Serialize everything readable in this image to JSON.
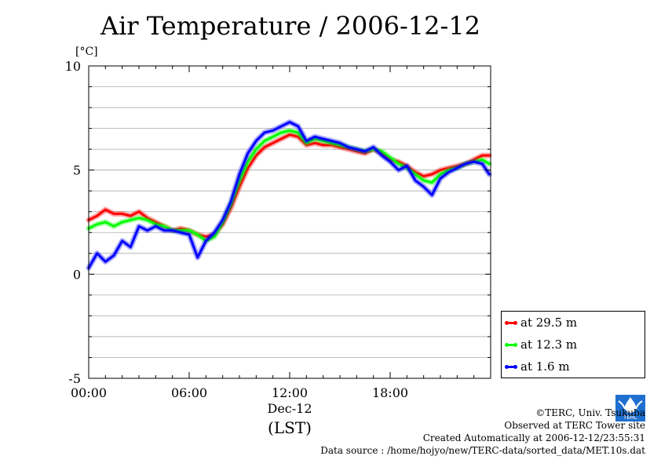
{
  "chart_data": {
    "type": "line",
    "title": "Air Temperature / 2006-12-12",
    "ylabel": "[°C]",
    "ylim": [
      -5,
      10
    ],
    "yticks": [
      -5,
      0,
      5,
      10
    ],
    "xlim": [
      "2006-12-12 00:00",
      "2006-12-13 00:00"
    ],
    "xticks": [
      "00:00",
      "06:00",
      "12:00",
      "18:00"
    ],
    "xdate_label": "Dec-12",
    "xlabel": "(LST)",
    "grid": true,
    "legend_position": "right, below the plot top",
    "x": [
      "00:00",
      "00:30",
      "01:00",
      "01:30",
      "02:00",
      "02:30",
      "03:00",
      "03:30",
      "04:00",
      "04:30",
      "05:00",
      "05:30",
      "06:00",
      "06:30",
      "07:00",
      "07:30",
      "08:00",
      "08:30",
      "09:00",
      "09:30",
      "10:00",
      "10:30",
      "11:00",
      "11:30",
      "12:00",
      "12:30",
      "13:00",
      "13:30",
      "14:00",
      "14:30",
      "15:00",
      "15:30",
      "16:00",
      "16:30",
      "17:00",
      "17:30",
      "18:00",
      "18:30",
      "19:00",
      "19:30",
      "20:00",
      "20:30",
      "21:00",
      "21:30",
      "22:00",
      "22:30",
      "23:00",
      "23:30",
      "23:55"
    ],
    "series": [
      {
        "name": "at 29.5 m",
        "color": "#ff0000",
        "values": [
          2.6,
          2.8,
          3.1,
          2.9,
          2.9,
          2.8,
          3.0,
          2.7,
          2.5,
          2.3,
          2.1,
          2.2,
          2.1,
          1.9,
          1.8,
          1.9,
          2.4,
          3.2,
          4.2,
          5.1,
          5.7,
          6.1,
          6.3,
          6.5,
          6.7,
          6.6,
          6.2,
          6.3,
          6.2,
          6.2,
          6.1,
          6.0,
          5.9,
          5.8,
          6.0,
          5.8,
          5.5,
          5.4,
          5.2,
          4.9,
          4.7,
          4.8,
          5.0,
          5.1,
          5.2,
          5.3,
          5.5,
          5.7,
          5.7
        ]
      },
      {
        "name": "at 12.3 m",
        "color": "#00ff00",
        "values": [
          2.2,
          2.4,
          2.5,
          2.3,
          2.5,
          2.6,
          2.7,
          2.6,
          2.4,
          2.3,
          2.1,
          2.1,
          2.1,
          1.9,
          1.6,
          1.8,
          2.5,
          3.4,
          4.5,
          5.4,
          6.0,
          6.4,
          6.6,
          6.8,
          6.9,
          6.8,
          6.3,
          6.5,
          6.4,
          6.3,
          6.2,
          6.1,
          6.0,
          5.9,
          6.0,
          5.9,
          5.6,
          5.3,
          5.1,
          4.8,
          4.5,
          4.4,
          4.8,
          5.0,
          5.1,
          5.3,
          5.4,
          5.5,
          5.3
        ]
      },
      {
        "name": "at 1.6 m",
        "color": "#0000ff",
        "values": [
          0.3,
          1.0,
          0.6,
          0.9,
          1.6,
          1.3,
          2.3,
          2.1,
          2.3,
          2.1,
          2.1,
          2.0,
          1.9,
          0.8,
          1.6,
          2.0,
          2.6,
          3.5,
          4.8,
          5.8,
          6.4,
          6.8,
          6.9,
          7.1,
          7.3,
          7.1,
          6.4,
          6.6,
          6.5,
          6.4,
          6.3,
          6.1,
          6.0,
          5.9,
          6.1,
          5.7,
          5.4,
          5.0,
          5.2,
          4.5,
          4.2,
          3.8,
          4.6,
          4.9,
          5.1,
          5.3,
          5.4,
          5.3,
          4.8
        ]
      }
    ]
  },
  "logo_text": "TERC",
  "credits": [
    "©TERC, Univ. Tsukuba",
    "Observed at TERC Tower site",
    "Created Automatically at 2006-12-12/23:55:31",
    "Data source : /home/hojyo/new/TERC-data/sorted_data/MET.10s.dat"
  ]
}
